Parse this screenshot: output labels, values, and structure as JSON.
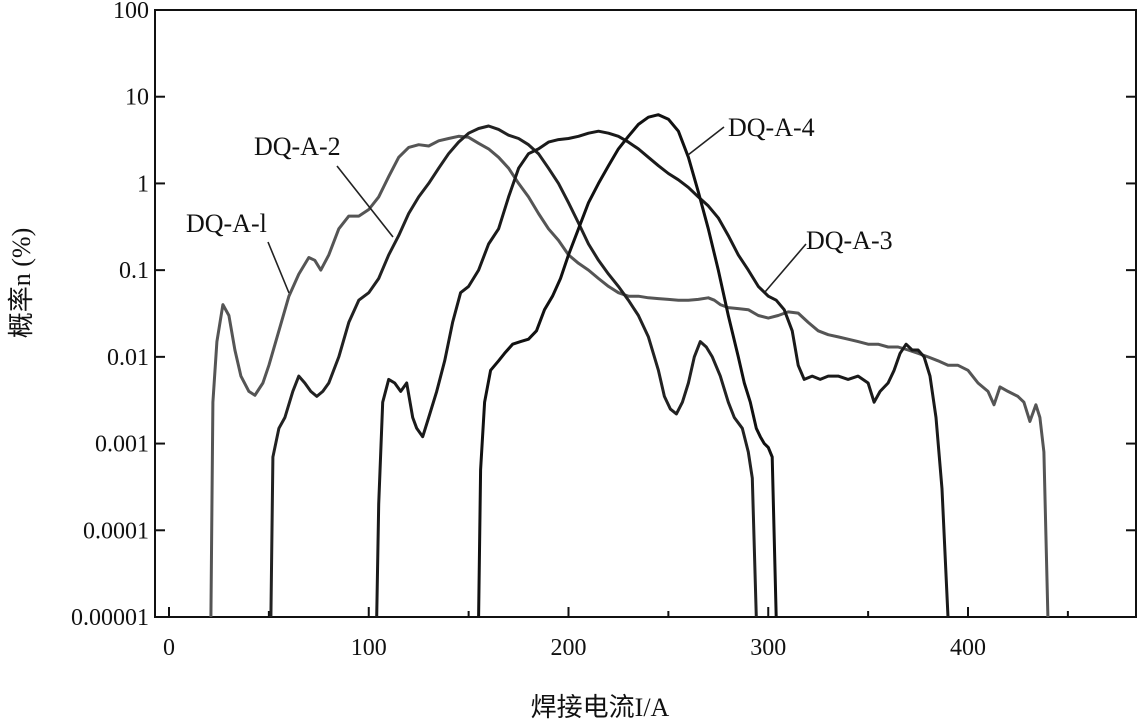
{
  "chart_data": {
    "type": "line",
    "title": "",
    "xlabel": "焊接电流I/A",
    "ylabel": "概率n (%)",
    "xlim": [
      0,
      480
    ],
    "ylim": [
      1e-05,
      100
    ],
    "yscale": "log",
    "x_ticks": [
      0,
      100,
      200,
      300,
      400
    ],
    "x_tick_labels": [
      "0",
      "100",
      "200",
      "300",
      "400"
    ],
    "x_minor_ticks": [
      50,
      150,
      250,
      350,
      450
    ],
    "y_ticks": [
      100,
      10,
      1,
      0.1,
      0.01,
      0.001,
      0.0001,
      1e-05
    ],
    "y_tick_labels": [
      "100",
      "10",
      "1",
      "0.1",
      "0.01",
      "0.001",
      "0.0001",
      "0.00001"
    ],
    "grid": false,
    "series": [
      {
        "name": "DQ-A-l",
        "color": "#555555",
        "points": [
          [
            21,
            1e-05
          ],
          [
            22,
            0.003
          ],
          [
            24,
            0.015
          ],
          [
            27,
            0.04
          ],
          [
            30,
            0.03
          ],
          [
            33,
            0.012
          ],
          [
            36,
            0.006
          ],
          [
            40,
            0.004
          ],
          [
            43,
            0.0036
          ],
          [
            47,
            0.005
          ],
          [
            50,
            0.008
          ],
          [
            55,
            0.02
          ],
          [
            60,
            0.05
          ],
          [
            65,
            0.09
          ],
          [
            70,
            0.14
          ],
          [
            73,
            0.13
          ],
          [
            76,
            0.1
          ],
          [
            80,
            0.15
          ],
          [
            85,
            0.3
          ],
          [
            90,
            0.42
          ],
          [
            95,
            0.42
          ],
          [
            100,
            0.5
          ],
          [
            105,
            0.7
          ],
          [
            110,
            1.2
          ],
          [
            115,
            2.0
          ],
          [
            120,
            2.6
          ],
          [
            125,
            2.8
          ],
          [
            130,
            2.7
          ],
          [
            135,
            3.1
          ],
          [
            140,
            3.3
          ],
          [
            145,
            3.5
          ],
          [
            150,
            3.4
          ],
          [
            155,
            2.9
          ],
          [
            160,
            2.5
          ],
          [
            165,
            2.0
          ],
          [
            170,
            1.5
          ],
          [
            175,
            1.0
          ],
          [
            180,
            0.7
          ],
          [
            185,
            0.45
          ],
          [
            190,
            0.3
          ],
          [
            195,
            0.22
          ],
          [
            200,
            0.15
          ],
          [
            205,
            0.12
          ],
          [
            210,
            0.1
          ],
          [
            215,
            0.08
          ],
          [
            220,
            0.065
          ],
          [
            225,
            0.055
          ],
          [
            230,
            0.05
          ],
          [
            235,
            0.05
          ],
          [
            240,
            0.048
          ],
          [
            245,
            0.047
          ],
          [
            250,
            0.046
          ],
          [
            255,
            0.045
          ],
          [
            260,
            0.045
          ],
          [
            265,
            0.046
          ],
          [
            270,
            0.048
          ],
          [
            273,
            0.045
          ],
          [
            276,
            0.04
          ],
          [
            280,
            0.037
          ],
          [
            285,
            0.036
          ],
          [
            290,
            0.035
          ],
          [
            295,
            0.03
          ],
          [
            300,
            0.028
          ],
          [
            305,
            0.03
          ],
          [
            310,
            0.033
          ],
          [
            315,
            0.032
          ],
          [
            320,
            0.025
          ],
          [
            325,
            0.02
          ],
          [
            330,
            0.018
          ],
          [
            335,
            0.017
          ],
          [
            340,
            0.016
          ],
          [
            345,
            0.015
          ],
          [
            350,
            0.014
          ],
          [
            355,
            0.014
          ],
          [
            360,
            0.013
          ],
          [
            365,
            0.013
          ],
          [
            370,
            0.012
          ],
          [
            375,
            0.011
          ],
          [
            380,
            0.01
          ],
          [
            385,
            0.009
          ],
          [
            390,
            0.008
          ],
          [
            395,
            0.008
          ],
          [
            400,
            0.007
          ],
          [
            405,
            0.005
          ],
          [
            410,
            0.004
          ],
          [
            413,
            0.0028
          ],
          [
            416,
            0.0045
          ],
          [
            420,
            0.004
          ],
          [
            425,
            0.0035
          ],
          [
            428,
            0.003
          ],
          [
            431,
            0.0018
          ],
          [
            434,
            0.0028
          ],
          [
            436,
            0.002
          ],
          [
            438,
            0.0008
          ],
          [
            440,
            1e-05
          ]
        ]
      },
      {
        "name": "DQ-A-2",
        "color": "#222222",
        "points": [
          [
            51,
            1e-05
          ],
          [
            52,
            0.0007
          ],
          [
            55,
            0.0015
          ],
          [
            58,
            0.002
          ],
          [
            62,
            0.004
          ],
          [
            65,
            0.006
          ],
          [
            68,
            0.005
          ],
          [
            71,
            0.004
          ],
          [
            74,
            0.0035
          ],
          [
            77,
            0.004
          ],
          [
            80,
            0.005
          ],
          [
            85,
            0.01
          ],
          [
            90,
            0.025
          ],
          [
            95,
            0.045
          ],
          [
            100,
            0.055
          ],
          [
            105,
            0.08
          ],
          [
            110,
            0.15
          ],
          [
            115,
            0.25
          ],
          [
            120,
            0.45
          ],
          [
            125,
            0.7
          ],
          [
            130,
            1.0
          ],
          [
            135,
            1.5
          ],
          [
            140,
            2.2
          ],
          [
            145,
            3.0
          ],
          [
            150,
            3.8
          ],
          [
            155,
            4.3
          ],
          [
            160,
            4.6
          ],
          [
            165,
            4.2
          ],
          [
            170,
            3.6
          ],
          [
            175,
            3.3
          ],
          [
            180,
            2.8
          ],
          [
            185,
            2.2
          ],
          [
            190,
            1.5
          ],
          [
            195,
            1.0
          ],
          [
            200,
            0.6
          ],
          [
            205,
            0.35
          ],
          [
            210,
            0.2
          ],
          [
            215,
            0.13
          ],
          [
            220,
            0.09
          ],
          [
            225,
            0.065
          ],
          [
            230,
            0.045
          ],
          [
            235,
            0.03
          ],
          [
            240,
            0.017
          ],
          [
            245,
            0.007
          ],
          [
            248,
            0.0035
          ],
          [
            251,
            0.0025
          ],
          [
            254,
            0.0022
          ],
          [
            257,
            0.003
          ],
          [
            260,
            0.005
          ],
          [
            263,
            0.01
          ],
          [
            266,
            0.015
          ],
          [
            269,
            0.013
          ],
          [
            272,
            0.01
          ],
          [
            276,
            0.006
          ],
          [
            280,
            0.003
          ],
          [
            283,
            0.002
          ],
          [
            287,
            0.0015
          ],
          [
            290,
            0.0008
          ],
          [
            292,
            0.0004
          ],
          [
            294,
            1e-05
          ]
        ]
      },
      {
        "name": "DQ-A-3",
        "color": "#1a1a1a",
        "points": [
          [
            104,
            1e-05
          ],
          [
            105,
            0.0002
          ],
          [
            107,
            0.003
          ],
          [
            110,
            0.0055
          ],
          [
            113,
            0.005
          ],
          [
            116,
            0.004
          ],
          [
            119,
            0.005
          ],
          [
            122,
            0.002
          ],
          [
            124,
            0.0015
          ],
          [
            127,
            0.0012
          ],
          [
            130,
            0.002
          ],
          [
            134,
            0.004
          ],
          [
            138,
            0.009
          ],
          [
            142,
            0.025
          ],
          [
            146,
            0.055
          ],
          [
            150,
            0.065
          ],
          [
            155,
            0.1
          ],
          [
            160,
            0.2
          ],
          [
            165,
            0.3
          ],
          [
            170,
            0.7
          ],
          [
            175,
            1.5
          ],
          [
            180,
            2.2
          ],
          [
            185,
            2.5
          ],
          [
            190,
            3.0
          ],
          [
            195,
            3.2
          ],
          [
            200,
            3.3
          ],
          [
            205,
            3.5
          ],
          [
            210,
            3.8
          ],
          [
            215,
            4.0
          ],
          [
            220,
            3.8
          ],
          [
            225,
            3.5
          ],
          [
            230,
            3.0
          ],
          [
            235,
            2.5
          ],
          [
            240,
            2.0
          ],
          [
            245,
            1.6
          ],
          [
            250,
            1.3
          ],
          [
            255,
            1.1
          ],
          [
            260,
            0.9
          ],
          [
            265,
            0.7
          ],
          [
            270,
            0.55
          ],
          [
            275,
            0.4
          ],
          [
            280,
            0.25
          ],
          [
            285,
            0.15
          ],
          [
            290,
            0.1
          ],
          [
            295,
            0.065
          ],
          [
            300,
            0.05
          ],
          [
            304,
            0.045
          ],
          [
            308,
            0.035
          ],
          [
            312,
            0.02
          ],
          [
            315,
            0.008
          ],
          [
            318,
            0.0055
          ],
          [
            322,
            0.006
          ],
          [
            326,
            0.0055
          ],
          [
            330,
            0.006
          ],
          [
            335,
            0.006
          ],
          [
            340,
            0.0055
          ],
          [
            345,
            0.006
          ],
          [
            350,
            0.005
          ],
          [
            353,
            0.003
          ],
          [
            356,
            0.004
          ],
          [
            360,
            0.005
          ],
          [
            363,
            0.007
          ],
          [
            366,
            0.011
          ],
          [
            369,
            0.014
          ],
          [
            372,
            0.012
          ],
          [
            375,
            0.012
          ],
          [
            378,
            0.01
          ],
          [
            381,
            0.006
          ],
          [
            384,
            0.002
          ],
          [
            387,
            0.0003
          ],
          [
            390,
            1e-05
          ]
        ]
      },
      {
        "name": "DQ-A-4",
        "color": "#111111",
        "points": [
          [
            155,
            1e-05
          ],
          [
            156,
            0.0005
          ],
          [
            158,
            0.003
          ],
          [
            161,
            0.007
          ],
          [
            165,
            0.009
          ],
          [
            168,
            0.011
          ],
          [
            172,
            0.014
          ],
          [
            176,
            0.015
          ],
          [
            180,
            0.016
          ],
          [
            184,
            0.02
          ],
          [
            188,
            0.035
          ],
          [
            192,
            0.05
          ],
          [
            196,
            0.08
          ],
          [
            200,
            0.15
          ],
          [
            205,
            0.3
          ],
          [
            210,
            0.6
          ],
          [
            215,
            1.0
          ],
          [
            220,
            1.6
          ],
          [
            225,
            2.5
          ],
          [
            230,
            3.5
          ],
          [
            235,
            4.8
          ],
          [
            240,
            5.8
          ],
          [
            245,
            6.2
          ],
          [
            250,
            5.5
          ],
          [
            255,
            4.0
          ],
          [
            260,
            2.0
          ],
          [
            265,
            0.8
          ],
          [
            270,
            0.3
          ],
          [
            275,
            0.1
          ],
          [
            280,
            0.03
          ],
          [
            285,
            0.01
          ],
          [
            288,
            0.005
          ],
          [
            291,
            0.003
          ],
          [
            294,
            0.0015
          ],
          [
            296,
            0.0012
          ],
          [
            298,
            0.001
          ],
          [
            300,
            0.0009
          ],
          [
            302,
            0.0007
          ],
          [
            304,
            1e-05
          ]
        ]
      }
    ],
    "annotations": [
      {
        "text": "DQ-A-l",
        "series": "DQ-A-l"
      },
      {
        "text": "DQ-A-2",
        "series": "DQ-A-2"
      },
      {
        "text": "DQ-A-3",
        "series": "DQ-A-3"
      },
      {
        "text": "DQ-A-4",
        "series": "DQ-A-4"
      }
    ]
  }
}
